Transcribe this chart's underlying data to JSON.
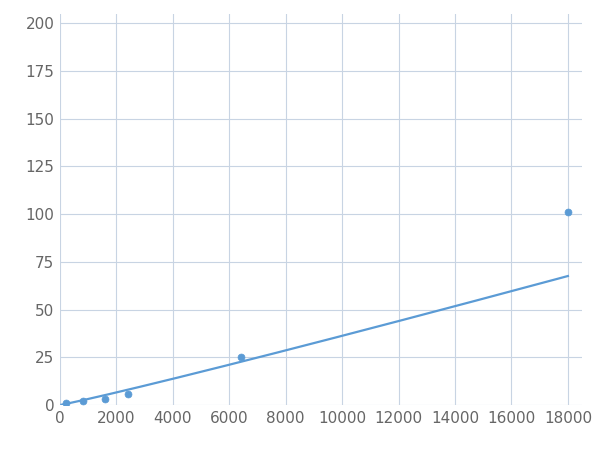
{
  "x_points": [
    200,
    800,
    1600,
    2400,
    6400,
    18000
  ],
  "y_points": [
    1,
    2,
    3,
    6,
    25,
    101
  ],
  "line_color": "#5B9BD5",
  "marker_color": "#5B9BD5",
  "marker_size": 5,
  "line_width": 1.6,
  "xlim": [
    0,
    18500
  ],
  "ylim": [
    0,
    205
  ],
  "xticks": [
    0,
    2000,
    4000,
    6000,
    8000,
    10000,
    12000,
    14000,
    16000,
    18000
  ],
  "yticks": [
    0,
    25,
    50,
    75,
    100,
    125,
    150,
    175,
    200
  ],
  "grid_color": "#C8D4E3",
  "background_color": "#FFFFFF",
  "tick_fontsize": 11,
  "tick_color": "#666666"
}
